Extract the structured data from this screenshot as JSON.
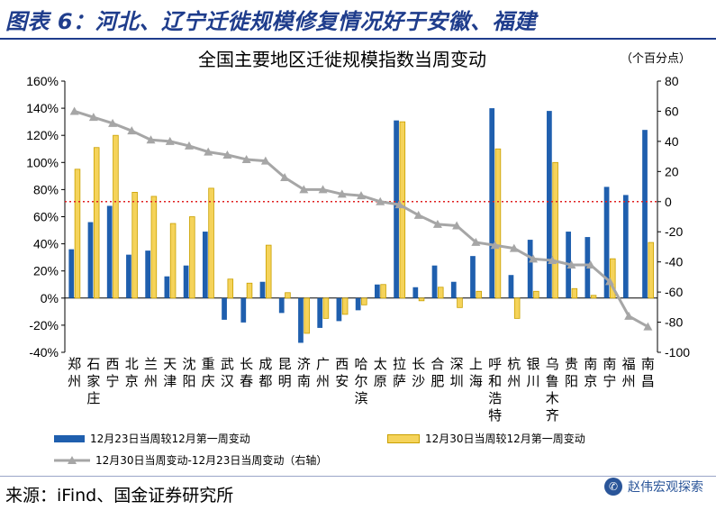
{
  "header": {
    "title": "图表 6：河北、辽宁迁徙规模修复情况好于安徽、福建"
  },
  "chart_data": {
    "type": "bar",
    "title": "全国主要地区迁徙规模指数当周变动",
    "unit_note": "（个百分点）",
    "categories": [
      "郑州",
      "石家庄",
      "西宁",
      "北京",
      "兰州",
      "天津",
      "沈阳",
      "重庆",
      "武汉",
      "长春",
      "成都",
      "昆明",
      "济南",
      "广州",
      "西安",
      "哈尔滨",
      "太原",
      "拉萨",
      "长沙",
      "合肥",
      "深圳",
      "上海",
      "呼和浩特",
      "杭州",
      "银川",
      "乌鲁木齐",
      "贵阳",
      "南京",
      "南宁",
      "福州",
      "南昌"
    ],
    "series": [
      {
        "name": "12月23日当周较12月第一周变动",
        "axis": "left",
        "type": "bar",
        "color": "#1f5fae",
        "values": [
          36,
          56,
          68,
          32,
          35,
          16,
          24,
          49,
          -16,
          -18,
          12,
          -11,
          -33,
          -22,
          -17,
          -9,
          10,
          131,
          8,
          24,
          12,
          31,
          140,
          17,
          43,
          138,
          49,
          45,
          82,
          76,
          124
        ]
      },
      {
        "name": "12月30日当周较12月第一周变动",
        "axis": "left",
        "type": "bar",
        "color": "#f5d35a",
        "values": [
          95,
          111,
          120,
          78,
          75,
          55,
          60,
          81,
          14,
          11,
          39,
          4,
          -26,
          -15,
          -12,
          -5,
          10,
          130,
          -2,
          8,
          -7,
          5,
          110,
          -15,
          5,
          100,
          7,
          2,
          29,
          0,
          41
        ]
      },
      {
        "name": "12月30日当周变动-12月23日当周变动（右轴）",
        "axis": "right",
        "type": "line",
        "color": "#a6a6a6",
        "values": [
          60,
          56,
          52,
          47,
          41,
          40,
          37,
          33,
          31,
          28,
          27,
          16,
          8,
          8,
          5,
          4,
          0,
          -2,
          -9,
          -15,
          -16,
          -27,
          -29,
          -31,
          -38,
          -39,
          -42,
          -42,
          -53,
          -76,
          -83
        ]
      }
    ],
    "left_axis": {
      "ylim": [
        -40,
        160
      ],
      "ticks": [
        "-40%",
        "-20%",
        "0%",
        "20%",
        "40%",
        "60%",
        "80%",
        "100%",
        "120%",
        "140%",
        "160%"
      ]
    },
    "right_axis": {
      "ylim": [
        -100,
        80
      ],
      "ticks": [
        "-100",
        "-80",
        "-60",
        "-40",
        "-20",
        "0",
        "20",
        "40",
        "60",
        "80"
      ]
    },
    "reference_line": {
      "axis": "right",
      "value": 0,
      "color": "#e02020"
    },
    "legend_position": "bottom"
  },
  "footer": {
    "source": "来源：iFind、国金证券研究所",
    "brand": "赵伟宏观探索"
  }
}
